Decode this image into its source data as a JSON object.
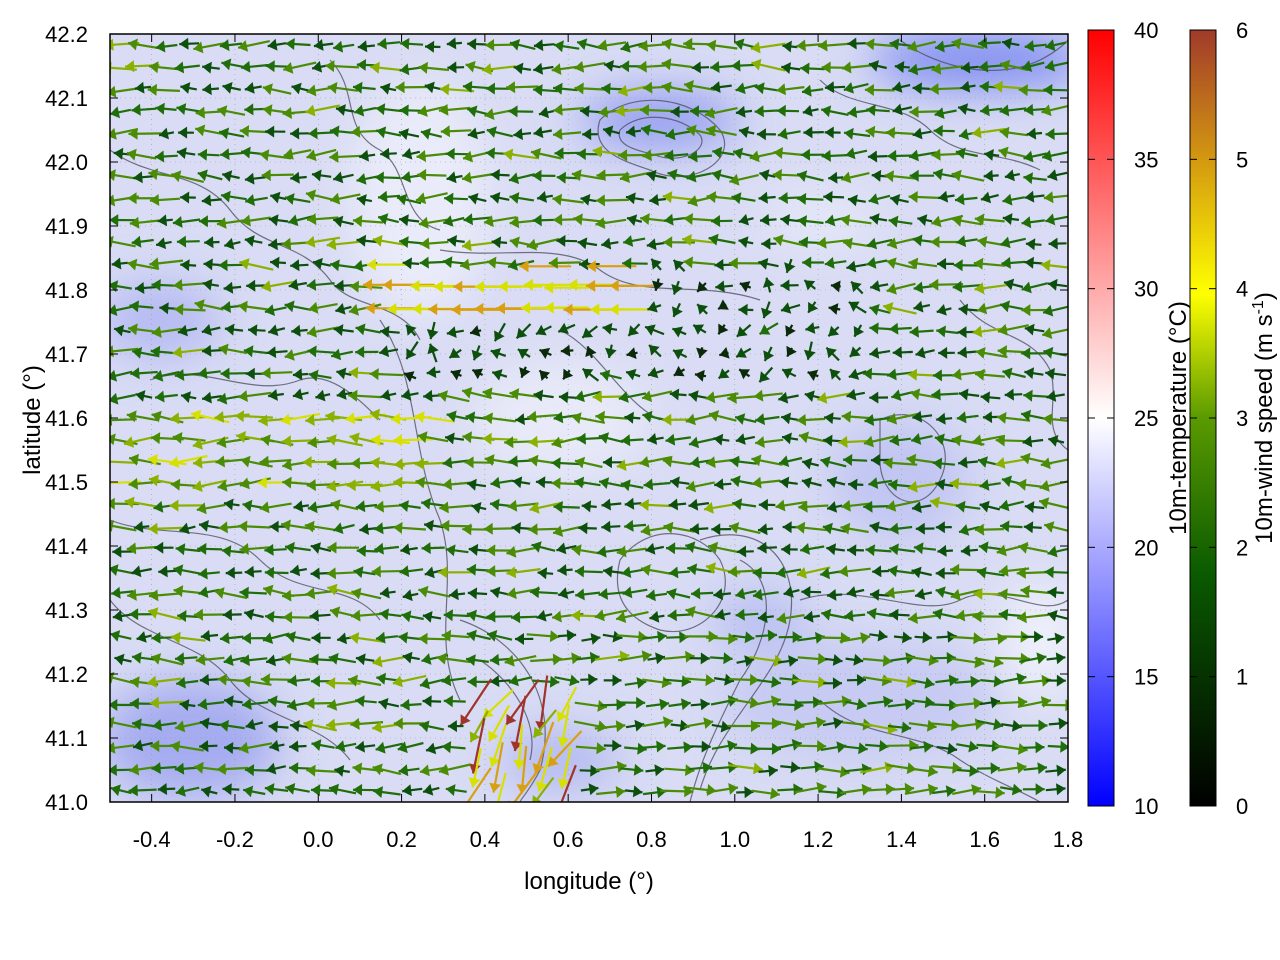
{
  "chart_data": {
    "type": "vector-field",
    "xlabel": "longitude (°)",
    "ylabel": "latitude (°)",
    "xlim": [
      -0.5,
      1.8
    ],
    "ylim": [
      41.0,
      42.2
    ],
    "xticks": [
      "-0.4",
      "-0.2",
      "0.0",
      "0.2",
      "0.4",
      "0.6",
      "0.8",
      "1.0",
      "1.2",
      "1.4",
      "1.6",
      "1.8"
    ],
    "yticks": [
      "41.0",
      "41.1",
      "41.2",
      "41.3",
      "41.4",
      "41.5",
      "41.6",
      "41.7",
      "41.8",
      "41.9",
      "42.0",
      "42.1",
      "42.2"
    ],
    "grid": true,
    "background_field": {
      "name": "10m-temperature",
      "unit": "°C",
      "range": [
        10,
        40
      ],
      "typical_range": [
        15,
        24
      ],
      "palette": [
        "#0000ff",
        "#ffffff",
        "#ff0000"
      ]
    },
    "vector_field": {
      "name": "10m-wind speed",
      "range": [
        0,
        6
      ],
      "palette": [
        "#000000",
        "#006400",
        "#6aa000",
        "#ffff00",
        "#d4a000",
        "#a0342a"
      ],
      "dominant_direction": "westward",
      "typical_speed": [
        1,
        3
      ],
      "max_speed": 6
    },
    "colorbars": [
      {
        "name": "temperature",
        "label": "10m-temperature (°C)",
        "ticks": [
          "10",
          "15",
          "20",
          "25",
          "30",
          "35",
          "40"
        ]
      },
      {
        "name": "wind",
        "label": "10m-wind speed (m s-1)",
        "label_main": "10m-wind speed (m s",
        "label_sup": "-1",
        "label_end": ")",
        "ticks": [
          "0",
          "1",
          "2",
          "3",
          "4",
          "5",
          "6"
        ]
      }
    ]
  }
}
